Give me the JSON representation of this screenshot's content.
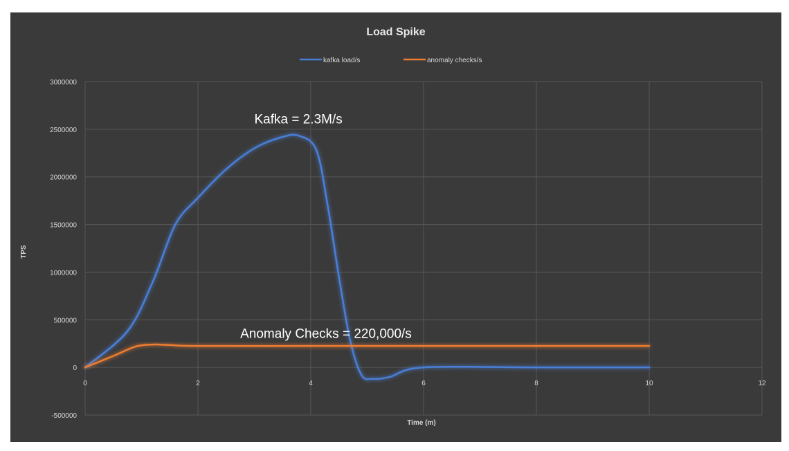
{
  "chart_data": {
    "type": "line",
    "title": "Load Spike",
    "xlabel": "Time (m)",
    "ylabel": "TPS",
    "xlim": [
      0,
      12
    ],
    "ylim": [
      -500000,
      3000000
    ],
    "x_ticks": [
      0,
      2,
      4,
      6,
      8,
      10,
      12
    ],
    "y_ticks": [
      -500000,
      0,
      500000,
      1000000,
      1500000,
      2000000,
      2500000,
      3000000
    ],
    "grid": true,
    "legend_position": "top",
    "series": [
      {
        "name": "kafka load/s",
        "color": "#4a7fd8",
        "x": [
          0,
          0.75,
          1.2,
          1.6,
          2,
          2.5,
          3,
          3.5,
          3.8,
          4.1,
          4.3,
          4.5,
          4.7,
          4.9,
          5.1,
          5.4,
          6,
          8,
          10
        ],
        "values": [
          0,
          380000,
          900000,
          1500000,
          1780000,
          2080000,
          2300000,
          2420000,
          2430000,
          2280000,
          1700000,
          950000,
          280000,
          -80000,
          -120000,
          -100000,
          0,
          0,
          0
        ]
      },
      {
        "name": "anomaly checks/s",
        "color": "#ed7d31",
        "x": [
          0,
          0.5,
          0.9,
          1.2,
          1.5,
          2,
          4,
          6,
          8,
          10
        ],
        "values": [
          0,
          120000,
          220000,
          240000,
          235000,
          225000,
          225000,
          225000,
          225000,
          225000
        ]
      }
    ],
    "annotations": [
      {
        "text": "Kafka = 2.3M/s",
        "x": 3.0,
        "y": 2560000
      },
      {
        "text": "Anomaly Checks = 220,000/s",
        "x": 2.75,
        "y": 310000
      }
    ]
  }
}
